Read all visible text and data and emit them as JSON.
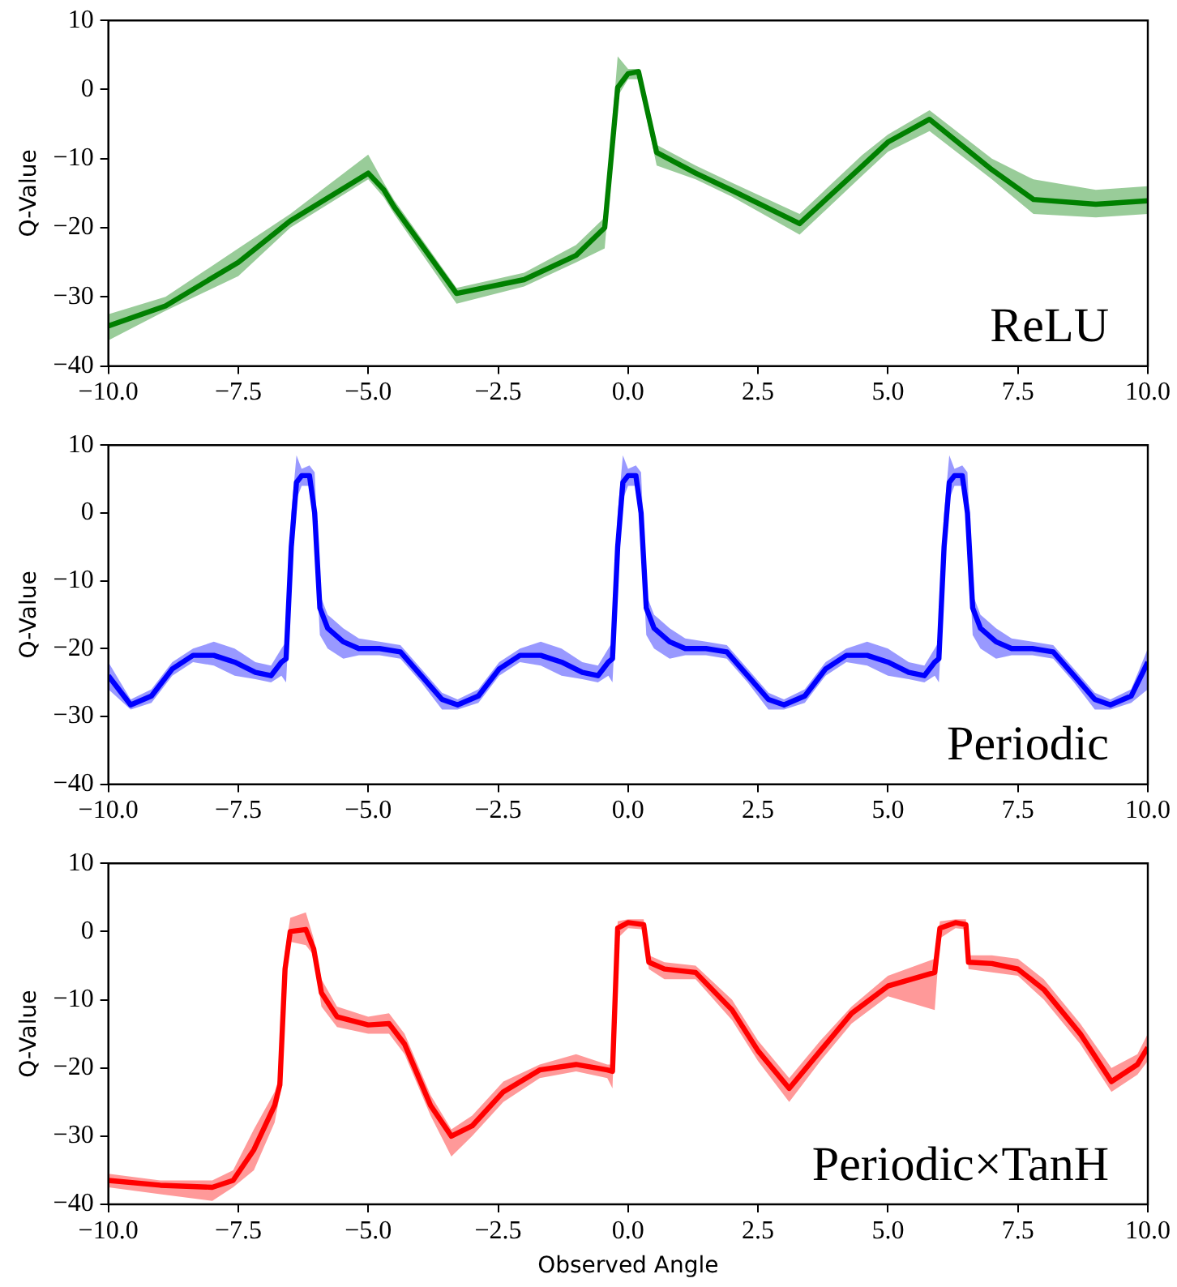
{
  "chart_data": [
    {
      "type": "line",
      "ylabel": "Q-Value",
      "annotations": [
        "ReLU"
      ],
      "xlim": [
        -10,
        10
      ],
      "ylim": [
        -40,
        10
      ],
      "xticks": [
        {
          "value": -10,
          "label": "−10.0"
        },
        {
          "value": -7.5,
          "label": "−7.5"
        },
        {
          "value": -5,
          "label": "−5.0"
        },
        {
          "value": -2.5,
          "label": "−2.5"
        },
        {
          "value": 0,
          "label": "0.0"
        },
        {
          "value": 2.5,
          "label": "2.5"
        },
        {
          "value": 5,
          "label": "5.0"
        },
        {
          "value": 7.5,
          "label": "7.5"
        },
        {
          "value": 10,
          "label": "10.0"
        }
      ],
      "yticks": [
        {
          "value": -40,
          "label": "−40"
        },
        {
          "value": -30,
          "label": "−30"
        },
        {
          "value": -20,
          "label": "−20"
        },
        {
          "value": -10,
          "label": "−10"
        },
        {
          "value": 0,
          "label": "0"
        },
        {
          "value": 10,
          "label": "10"
        }
      ],
      "series": [
        {
          "color": "#008000",
          "x": [
            -10,
            -8.9,
            -7.5,
            -6.5,
            -5,
            -4.7,
            -4.5,
            -3.3,
            -2,
            -1,
            -0.45,
            -0.2,
            0,
            0.2,
            0.55,
            1.3,
            2,
            3.3,
            4.5,
            5,
            5.8,
            7,
            7.8,
            9,
            10
          ],
          "values": [
            -34.2,
            -31.3,
            -25,
            -19,
            -12.1,
            -14.5,
            -17,
            -29.5,
            -27.5,
            -24,
            -20,
            0.3,
            2.3,
            2.6,
            -9.1,
            -12.1,
            -14.6,
            -19.4,
            -11.1,
            -7.6,
            -4.3,
            -11.6,
            -15.9,
            -16.6,
            -16.1
          ],
          "lower": [
            -36.3,
            -32,
            -27,
            -20,
            -13,
            -15.6,
            -18,
            -31,
            -28.5,
            -25,
            -23,
            -1,
            1.5,
            1.5,
            -11,
            -13,
            -15.5,
            -21,
            -12.5,
            -9,
            -6,
            -13,
            -18,
            -18.5,
            -18
          ],
          "upper": [
            -32.5,
            -30,
            -23,
            -18,
            -9.4,
            -13.5,
            -16,
            -28.7,
            -26.5,
            -22.5,
            -18.5,
            4.8,
            3,
            3,
            -8,
            -11,
            -13.5,
            -18,
            -9.5,
            -6.5,
            -3,
            -10,
            -13,
            -14.5,
            -14
          ]
        }
      ]
    },
    {
      "type": "line",
      "ylabel": "Q-Value",
      "annotations": [
        "Periodic"
      ],
      "xlim": [
        -10,
        10
      ],
      "ylim": [
        -40,
        10
      ],
      "xticks": [
        {
          "value": -10,
          "label": "−10.0"
        },
        {
          "value": -7.5,
          "label": "−7.5"
        },
        {
          "value": -5,
          "label": "−5.0"
        },
        {
          "value": -2.5,
          "label": "−2.5"
        },
        {
          "value": 0,
          "label": "0.0"
        },
        {
          "value": 2.5,
          "label": "2.5"
        },
        {
          "value": 5,
          "label": "5.0"
        },
        {
          "value": 7.5,
          "label": "7.5"
        },
        {
          "value": 10,
          "label": "10.0"
        }
      ],
      "yticks": [
        {
          "value": -40,
          "label": "−40"
        },
        {
          "value": -30,
          "label": "−30"
        },
        {
          "value": -20,
          "label": "−20"
        },
        {
          "value": -10,
          "label": "−10"
        },
        {
          "value": 0,
          "label": "0"
        },
        {
          "value": 10,
          "label": "10"
        }
      ],
      "series": [
        {
          "color": "#0000ff",
          "x": [
            -10,
            -9.57,
            -9.17,
            -8.77,
            -8.37,
            -7.97,
            -7.57,
            -7.17,
            -6.87,
            -6.67,
            -6.58,
            -6.48,
            -6.38,
            -6.28,
            -6.13,
            -6.03,
            -5.93,
            -5.78,
            -5.48,
            -5.18,
            -4.78,
            -4.38,
            -3.98,
            -3.58,
            -3.28,
            -2.88,
            -2.48,
            -2.08,
            -1.68,
            -1.28,
            -0.88,
            -0.58,
            -0.38,
            -0.3,
            -0.2,
            -0.1,
            0,
            0.15,
            0.25,
            0.35,
            0.5,
            0.8,
            1.1,
            1.5,
            1.9,
            2.3,
            2.7,
            3,
            3.4,
            3.8,
            4.2,
            4.6,
            5,
            5.4,
            5.7,
            5.9,
            5.98,
            6.08,
            6.18,
            6.28,
            6.43,
            6.53,
            6.63,
            6.78,
            7.08,
            7.38,
            7.78,
            8.18,
            8.58,
            8.98,
            9.28,
            9.68,
            10
          ],
          "values": [
            -24,
            -28.3,
            -27,
            -23,
            -21,
            -21,
            -22,
            -23.5,
            -24,
            -22,
            -21.5,
            -5,
            4.5,
            5.5,
            5.5,
            0,
            -14,
            -17,
            -19,
            -20,
            -20,
            -20.5,
            -24,
            -27.5,
            -28.3,
            -27,
            -23,
            -21,
            -21,
            -22,
            -23.5,
            -24,
            -22,
            -21.5,
            -5,
            4.5,
            5.5,
            5.5,
            0,
            -14,
            -17,
            -19,
            -20,
            -20,
            -20.5,
            -24,
            -27.5,
            -28.3,
            -27,
            -23,
            -21,
            -21,
            -22,
            -23.5,
            -24,
            -22,
            -21.5,
            -5,
            4.5,
            5.5,
            5.5,
            0,
            -14,
            -17,
            -19,
            -20,
            -20,
            -20.5,
            -24,
            -27.5,
            -28.3,
            -27,
            -22
          ],
          "lower": [
            -26,
            -29,
            -28,
            -24,
            -22,
            -22.5,
            -24,
            -24.5,
            -25,
            -24,
            -25,
            -10,
            2,
            4,
            4,
            -3,
            -18,
            -20,
            -21.5,
            -21,
            -21,
            -21.5,
            -25,
            -29,
            -29,
            -28,
            -24,
            -22,
            -22.5,
            -24,
            -24.5,
            -25,
            -24,
            -25,
            -10,
            2,
            4,
            4,
            -3,
            -18,
            -20,
            -21.5,
            -21,
            -21,
            -21.5,
            -25,
            -29,
            -29,
            -28,
            -24,
            -22,
            -22.5,
            -24,
            -24.5,
            -25,
            -24,
            -25,
            -10,
            2,
            4,
            4,
            -3,
            -18,
            -20,
            -21.5,
            -21,
            -21,
            -21.5,
            -25,
            -29,
            -29,
            -28,
            -26
          ],
          "upper": [
            -22,
            -27.5,
            -26,
            -22,
            -20,
            -19,
            -20,
            -22,
            -22.5,
            -20,
            -19,
            0,
            8.5,
            6.5,
            7,
            6,
            -12,
            -15,
            -17,
            -18.5,
            -19,
            -19.5,
            -23,
            -26.5,
            -27.5,
            -26,
            -22,
            -20,
            -19,
            -20,
            -22,
            -22.5,
            -20,
            -19,
            0,
            8.5,
            6.5,
            7,
            6,
            -12,
            -15,
            -17,
            -18.5,
            -19,
            -19.5,
            -23,
            -26.5,
            -27.5,
            -26,
            -22,
            -20,
            -19,
            -20,
            -22,
            -22.5,
            -20,
            -19,
            0,
            8.5,
            6.5,
            7,
            6,
            -12,
            -15,
            -17,
            -18.5,
            -19,
            -19.5,
            -23,
            -26.5,
            -27.5,
            -26,
            -20
          ]
        }
      ]
    },
    {
      "type": "line",
      "xlabel": "Observed Angle",
      "ylabel": "Q-Value",
      "annotations": [
        "Periodic×TanH"
      ],
      "xlim": [
        -10,
        10
      ],
      "ylim": [
        -40,
        10
      ],
      "xticks": [
        {
          "value": -10,
          "label": "−10.0"
        },
        {
          "value": -7.5,
          "label": "−7.5"
        },
        {
          "value": -5,
          "label": "−5.0"
        },
        {
          "value": -2.5,
          "label": "−2.5"
        },
        {
          "value": 0,
          "label": "0.0"
        },
        {
          "value": 2.5,
          "label": "2.5"
        },
        {
          "value": 5,
          "label": "5.0"
        },
        {
          "value": 7.5,
          "label": "7.5"
        },
        {
          "value": 10,
          "label": "10.0"
        }
      ],
      "yticks": [
        {
          "value": -40,
          "label": "−40"
        },
        {
          "value": -30,
          "label": "−30"
        },
        {
          "value": -20,
          "label": "−20"
        },
        {
          "value": -10,
          "label": "−10"
        },
        {
          "value": 0,
          "label": "0"
        },
        {
          "value": 10,
          "label": "10"
        }
      ],
      "series": [
        {
          "color": "#ff0000",
          "x": [
            -10,
            -9,
            -8,
            -7.6,
            -7.2,
            -6.8,
            -6.7,
            -6.6,
            -6.5,
            -6.2,
            -6.05,
            -5.9,
            -5.6,
            -5,
            -4.6,
            -4.3,
            -3.8,
            -3.4,
            -3,
            -2.4,
            -1.7,
            -1,
            -0.4,
            -0.3,
            -0.2,
            0,
            0.3,
            0.4,
            0.7,
            1.3,
            2,
            2.5,
            3.1,
            3.7,
            4.3,
            5,
            5.9,
            6,
            6.3,
            6.5,
            6.55,
            7,
            7.5,
            8,
            8.7,
            9.3,
            9.8,
            10
          ],
          "values": [
            -36.5,
            -37.2,
            -37.5,
            -36.5,
            -32,
            -25.5,
            -22.5,
            -5.5,
            0,
            0.3,
            -2.5,
            -9,
            -12.5,
            -13.7,
            -13.5,
            -16.5,
            -25.5,
            -30,
            -28.5,
            -23.5,
            -20.3,
            -19.5,
            -20.3,
            -20.5,
            0.5,
            1.3,
            1,
            -4.5,
            -5.5,
            -6,
            -11.5,
            -17.5,
            -23,
            -17.5,
            -12,
            -8,
            -6,
            0.5,
            1.3,
            1,
            -4.5,
            -4.7,
            -5.5,
            -8.5,
            -15,
            -22,
            -19.5,
            -17
          ],
          "lower": [
            -37.5,
            -38.5,
            -39.5,
            -37.5,
            -35,
            -28,
            -24,
            -8,
            -1.5,
            -2,
            -3.5,
            -11,
            -14,
            -15,
            -15,
            -18,
            -27,
            -33,
            -30,
            -25,
            -21.5,
            -20.5,
            -21.5,
            -23,
            -1,
            0.5,
            0.3,
            -5.5,
            -7,
            -7,
            -13,
            -19,
            -25,
            -19,
            -13.5,
            -9.5,
            -11.5,
            -1,
            0.5,
            0.3,
            -5.5,
            -6,
            -6.5,
            -10,
            -16.5,
            -23.5,
            -21,
            -19
          ],
          "upper": [
            -35.5,
            -36.5,
            -36.5,
            -35,
            -29,
            -23.5,
            -21,
            -3,
            2,
            2.8,
            -1,
            -7,
            -11,
            -12.5,
            -12,
            -15,
            -24,
            -29,
            -27,
            -22,
            -19.5,
            -18,
            -19.5,
            -19.5,
            1.5,
            1.8,
            1.8,
            -3.5,
            -4.5,
            -5,
            -10,
            -16,
            -21.5,
            -16,
            -11,
            -6.5,
            -4,
            1.5,
            1.8,
            1.8,
            -3.5,
            -3.5,
            -4,
            -7,
            -13.5,
            -20,
            -18,
            -15
          ]
        }
      ]
    }
  ]
}
